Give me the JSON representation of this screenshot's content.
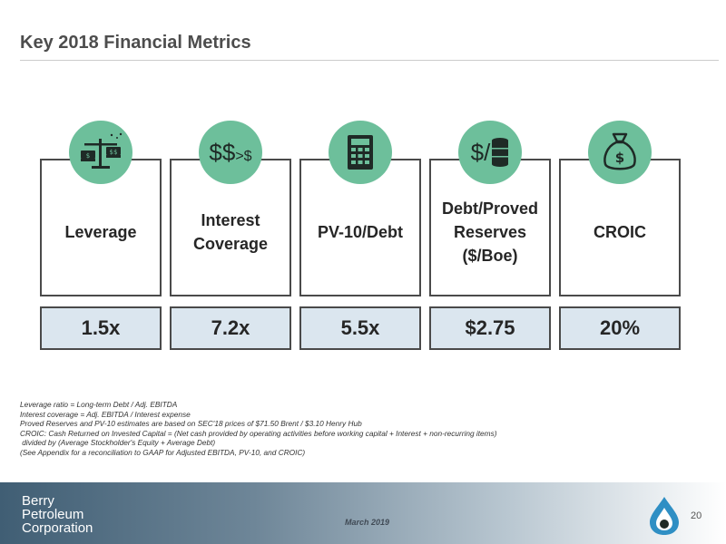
{
  "title": "Key 2018 Financial Metrics",
  "metrics": [
    {
      "label_lines": [
        "Leverage"
      ],
      "value": "1.5x",
      "icon": "balance-scale-money-icon"
    },
    {
      "label_lines": [
        "Interest",
        "Coverage"
      ],
      "value": "7.2x",
      "icon": "dollars-greater-than-dollar-icon",
      "icon_text": {
        "big": "$$",
        "small": ">$"
      }
    },
    {
      "label_lines": [
        "PV-10/Debt"
      ],
      "value": "5.5x",
      "icon": "calculator-icon"
    },
    {
      "label_lines": [
        "Debt/Proved",
        "Reserves",
        "($/Boe)"
      ],
      "value": "$2.75",
      "icon": "dollar-per-oil-barrel-icon",
      "icon_text": {
        "big": "$/"
      }
    },
    {
      "label_lines": [
        "CROIC"
      ],
      "value": "20%",
      "icon": "money-bag-icon"
    }
  ],
  "footnotes": [
    "Leverage ratio = Long-term Debt / Adj. EBITDA",
    "Interest coverage = Adj. EBITDA / Interest expense",
    "Proved Reserves and PV-10 estimates are based on SEC'18 prices of  $71.50 Brent / $3.10 Henry Hub",
    "CROIC: Cash Returned on Invested Capital =  (Net cash provided by operating activities before working capital + Interest + non-recurring items)",
    " divided by (Average Stockholder's Equity + Average Debt)",
    "(See Appendix for a reconciliation to GAAP for Adjusted EBITDA, PV-10, and CROIC)"
  ],
  "footer": {
    "logo_lines": [
      "Berry",
      "Petroleum",
      "Corporation"
    ],
    "date": "March 2019",
    "page_number": "20"
  },
  "colors": {
    "badge": "#6dbf9b",
    "value_bg": "#dbe6ef",
    "border": "#4a4a4a"
  }
}
